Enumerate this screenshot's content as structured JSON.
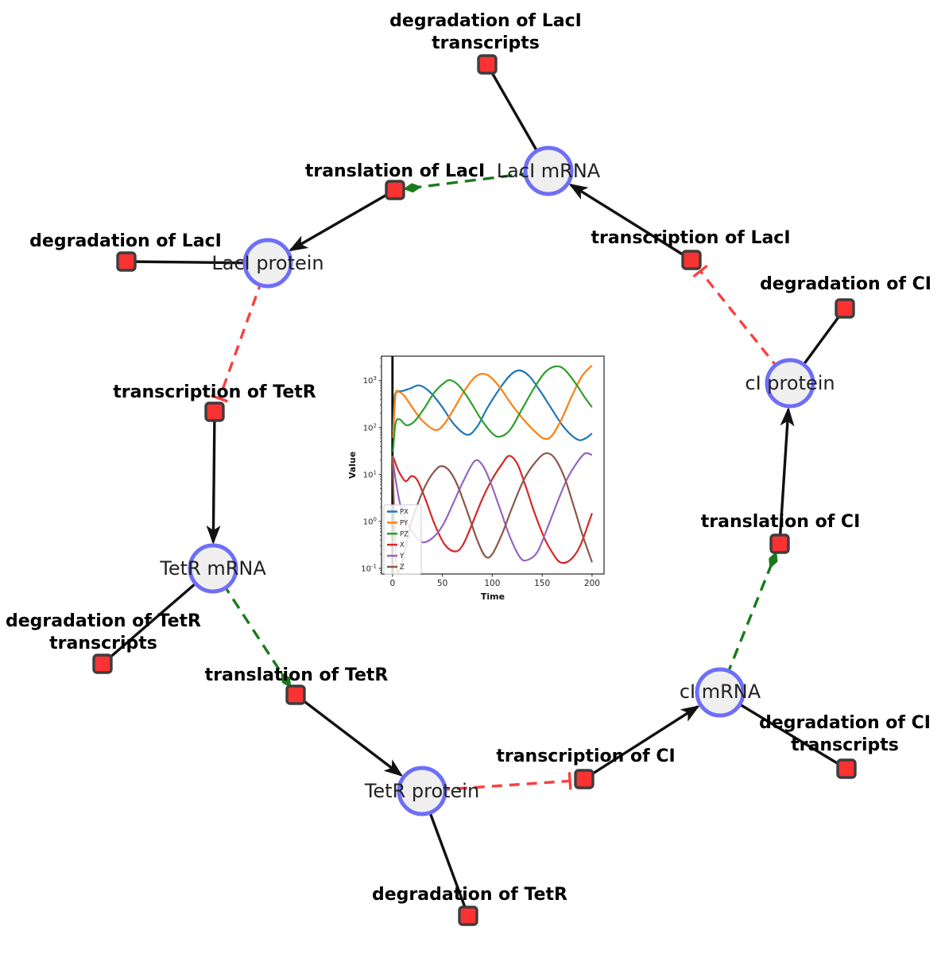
{
  "diagram": {
    "species": [
      {
        "label": "LacI mRNA"
      },
      {
        "label": "LacI protein"
      },
      {
        "label": "TetR mRNA"
      },
      {
        "label": "TetR protein"
      },
      {
        "label": "cI mRNA"
      },
      {
        "label": "cI protein"
      }
    ],
    "reactions": [
      {
        "lines": [
          "degradation of LacI",
          "transcripts"
        ]
      },
      {
        "lines": [
          "translation of LacI"
        ]
      },
      {
        "lines": [
          "degradation of LacI"
        ]
      },
      {
        "lines": [
          "transcription of LacI"
        ]
      },
      {
        "lines": [
          "degradation of CI"
        ]
      },
      {
        "lines": [
          "transcription of TetR"
        ]
      },
      {
        "lines": [
          "degradation of TetR",
          "transcripts"
        ]
      },
      {
        "lines": [
          "translation of TetR"
        ]
      },
      {
        "lines": [
          "degradation of TetR"
        ]
      },
      {
        "lines": [
          "transcription of CI"
        ]
      },
      {
        "lines": [
          "degradation of CI",
          "transcripts"
        ]
      },
      {
        "lines": [
          "translation of CI"
        ]
      }
    ],
    "colors": {
      "species_fill": "#efefef",
      "species_border": "#6e6ef8",
      "reaction_fill": "#fa3232",
      "reaction_border": "#3d3d3d",
      "edge_black": "#111111",
      "edge_activation_green": "#1a7a1a",
      "edge_inhibition_red": "#fb4040"
    }
  },
  "chart_data": {
    "type": "line",
    "title": "",
    "xlabel": "Time",
    "ylabel": "Value",
    "yscale": "log",
    "xlim": [
      -11,
      212
    ],
    "ylim_log_exponents": [
      -1.12,
      3.52
    ],
    "xticks": [
      0,
      50,
      100,
      150,
      200
    ],
    "ytick_exponents": [
      -1,
      0,
      1,
      2,
      3
    ],
    "grid": false,
    "legend_position": "lower left",
    "vline_x": 0,
    "vline_color": "#000000",
    "series": [
      {
        "name": "PX",
        "color": "#1f77b4",
        "points": [
          [
            0.5,
            80
          ],
          [
            2,
            420
          ],
          [
            5,
            580
          ],
          [
            10,
            600
          ],
          [
            18,
            680
          ],
          [
            27,
            790
          ],
          [
            38,
            560
          ],
          [
            50,
            270
          ],
          [
            62,
            115
          ],
          [
            75,
            70
          ],
          [
            85,
            105
          ],
          [
            95,
            260
          ],
          [
            108,
            700
          ],
          [
            118,
            1300
          ],
          [
            127,
            1650
          ],
          [
            137,
            1250
          ],
          [
            148,
            600
          ],
          [
            160,
            240
          ],
          [
            172,
            100
          ],
          [
            185,
            56
          ],
          [
            193,
            58
          ],
          [
            200,
            75
          ]
        ]
      },
      {
        "name": "PY",
        "color": "#ff7f0e",
        "points": [
          [
            0.5,
            60
          ],
          [
            3,
            480
          ],
          [
            6,
            580
          ],
          [
            12,
            470
          ],
          [
            20,
            265
          ],
          [
            30,
            140
          ],
          [
            43,
            88
          ],
          [
            52,
            120
          ],
          [
            62,
            260
          ],
          [
            72,
            600
          ],
          [
            82,
            1150
          ],
          [
            90,
            1400
          ],
          [
            98,
            1200
          ],
          [
            108,
            700
          ],
          [
            118,
            340
          ],
          [
            130,
            160
          ],
          [
            142,
            85
          ],
          [
            152,
            58
          ],
          [
            160,
            68
          ],
          [
            170,
            160
          ],
          [
            180,
            480
          ],
          [
            190,
            1250
          ],
          [
            200,
            2100
          ]
        ]
      },
      {
        "name": "PZ",
        "color": "#2ca02c",
        "points": [
          [
            0.5,
            30
          ],
          [
            3,
            120
          ],
          [
            7,
            150
          ],
          [
            14,
            112
          ],
          [
            22,
            135
          ],
          [
            32,
            260
          ],
          [
            42,
            560
          ],
          [
            52,
            900
          ],
          [
            58,
            1020
          ],
          [
            66,
            800
          ],
          [
            76,
            420
          ],
          [
            88,
            160
          ],
          [
            100,
            75
          ],
          [
            108,
            64
          ],
          [
            118,
            90
          ],
          [
            130,
            250
          ],
          [
            142,
            700
          ],
          [
            153,
            1500
          ],
          [
            163,
            2000
          ],
          [
            172,
            1750
          ],
          [
            183,
            900
          ],
          [
            193,
            430
          ],
          [
            200,
            270
          ]
        ]
      },
      {
        "name": "X",
        "color": "#d62728",
        "points": [
          [
            0,
            25
          ],
          [
            2,
            20
          ],
          [
            6,
            12
          ],
          [
            13,
            7.2
          ],
          [
            19,
            9.2
          ],
          [
            25,
            7.5
          ],
          [
            33,
            3
          ],
          [
            42,
            0.9
          ],
          [
            52,
            0.33
          ],
          [
            62,
            0.23
          ],
          [
            70,
            0.3
          ],
          [
            80,
            0.9
          ],
          [
            90,
            3
          ],
          [
            100,
            8
          ],
          [
            110,
            17
          ],
          [
            117,
            25
          ],
          [
            125,
            17
          ],
          [
            133,
            6
          ],
          [
            142,
            1.6
          ],
          [
            152,
            0.45
          ],
          [
            160,
            0.22
          ],
          [
            168,
            0.135
          ],
          [
            178,
            0.15
          ],
          [
            188,
            0.3
          ],
          [
            200,
            1.5
          ]
        ]
      },
      {
        "name": "Y",
        "color": "#9467bd",
        "points": [
          [
            0,
            25
          ],
          [
            3,
            8
          ],
          [
            8,
            2.2
          ],
          [
            15,
            0.9
          ],
          [
            22,
            0.52
          ],
          [
            30,
            0.36
          ],
          [
            40,
            0.44
          ],
          [
            50,
            0.8
          ],
          [
            60,
            2.2
          ],
          [
            70,
            6.5
          ],
          [
            82,
            19
          ],
          [
            90,
            16
          ],
          [
            98,
            7
          ],
          [
            108,
            1.8
          ],
          [
            118,
            0.45
          ],
          [
            128,
            0.17
          ],
          [
            135,
            0.15
          ],
          [
            145,
            0.22
          ],
          [
            155,
            0.7
          ],
          [
            165,
            2.5
          ],
          [
            175,
            8
          ],
          [
            185,
            18
          ],
          [
            193,
            28
          ],
          [
            200,
            26
          ]
        ]
      },
      {
        "name": "Z",
        "color": "#8c564b",
        "points": [
          [
            0,
            25
          ],
          [
            1.5,
            2
          ],
          [
            4,
            0.12
          ],
          [
            7,
            0.09
          ],
          [
            12,
            0.22
          ],
          [
            18,
            0.8
          ],
          [
            26,
            2.6
          ],
          [
            35,
            7
          ],
          [
            44,
            13
          ],
          [
            50,
            15
          ],
          [
            57,
            12
          ],
          [
            65,
            6
          ],
          [
            75,
            1.6
          ],
          [
            85,
            0.4
          ],
          [
            93,
            0.18
          ],
          [
            100,
            0.2
          ],
          [
            110,
            0.55
          ],
          [
            120,
            2
          ],
          [
            132,
            8
          ],
          [
            143,
            18
          ],
          [
            153,
            28
          ],
          [
            162,
            23
          ],
          [
            172,
            9
          ],
          [
            182,
            2
          ],
          [
            190,
            0.55
          ],
          [
            200,
            0.135
          ]
        ]
      }
    ]
  }
}
